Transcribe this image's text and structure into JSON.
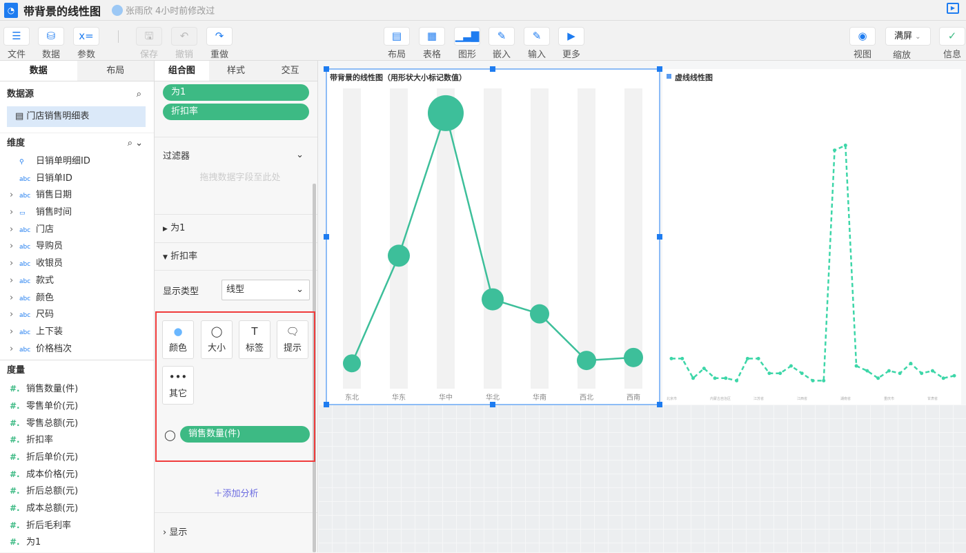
{
  "header": {
    "title": "带背景的线性图",
    "user": "张雨欣",
    "modified": "4小时前修改过"
  },
  "toolbar": {
    "file": "文件",
    "data": "数据",
    "params": "参数",
    "save": "保存",
    "undo": "撤销",
    "redo": "重做",
    "layout": "布局",
    "table": "表格",
    "chart": "图形",
    "embed": "嵌入",
    "input": "输入",
    "more": "更多",
    "view": "视图",
    "zoom_value": "满屏",
    "zoom": "缩放",
    "info": "信息"
  },
  "left": {
    "tabs": [
      "数据",
      "布局"
    ],
    "datasource_label": "数据源",
    "datasource": "门店销售明细表",
    "dimension_label": "维度",
    "dimensions": [
      {
        "n": "日销单明细ID",
        "t": "key"
      },
      {
        "n": "日销单ID",
        "t": "abc"
      },
      {
        "n": "销售日期",
        "t": "abc",
        "e": true
      },
      {
        "n": "销售时间",
        "t": "cal",
        "e": true
      },
      {
        "n": "门店",
        "t": "abc",
        "e": true
      },
      {
        "n": "导购员",
        "t": "abc",
        "e": true
      },
      {
        "n": "收银员",
        "t": "abc",
        "e": true
      },
      {
        "n": "款式",
        "t": "abc",
        "e": true
      },
      {
        "n": "颜色",
        "t": "abc",
        "e": true
      },
      {
        "n": "尺码",
        "t": "abc",
        "e": true
      },
      {
        "n": "上下装",
        "t": "abc",
        "e": true
      },
      {
        "n": "价格档次",
        "t": "abc",
        "e": true
      }
    ],
    "measure_label": "度量",
    "measures": [
      "销售数量(件)",
      "零售单价(元)",
      "零售总额(元)",
      "折扣率",
      "折后单价(元)",
      "成本价格(元)",
      "折后总额(元)",
      "成本总额(元)",
      "折后毛利率",
      "为1"
    ]
  },
  "mid": {
    "tabs": [
      "组合图",
      "样式",
      "交互"
    ],
    "pills": [
      "为1",
      "折扣率"
    ],
    "filter": "过滤器",
    "drop_hint": "拖拽数据字段至此处",
    "series1": "为1",
    "series2": "折扣率",
    "display_type_label": "显示类型",
    "display_type": "线型",
    "marks": [
      "颜色",
      "大小",
      "标签",
      "提示",
      "其它"
    ],
    "size_field": "销售数量(件)",
    "add_analysis": "添加分析",
    "display": "显示"
  },
  "colors": {
    "accent": "#1e7cf0",
    "green": "#3dba84",
    "line": "#3dbf9a",
    "red": "#ef3b3b"
  },
  "chart_data": [
    {
      "type": "line",
      "title": "带背景的线性图（用形状大小标记数值）",
      "categories": [
        "东北",
        "华东",
        "华中",
        "华北",
        "华南",
        "西北",
        "西南"
      ],
      "values": [
        0.08,
        0.45,
        0.94,
        0.3,
        0.25,
        0.09,
        0.1
      ],
      "size_values": [
        13,
        16,
        26,
        16,
        14,
        14,
        14
      ],
      "background_bands": true,
      "color": "#3dbf9a"
    },
    {
      "type": "line",
      "title": "虚线线性图",
      "line_style": "dashed",
      "tick_labels": [
        "北京市",
        "内蒙古自治区",
        "江苏省",
        "江西省",
        "湖南省",
        "重庆市",
        "甘肃省"
      ],
      "values": [
        0.12,
        0.12,
        0.04,
        0.08,
        0.04,
        0.04,
        0.03,
        0.12,
        0.12,
        0.06,
        0.06,
        0.09,
        0.06,
        0.03,
        0.03,
        0.97,
        0.99,
        0.09,
        0.07,
        0.04,
        0.07,
        0.06,
        0.1,
        0.06,
        0.07,
        0.04,
        0.05
      ],
      "color": "#3dd6a8"
    }
  ]
}
